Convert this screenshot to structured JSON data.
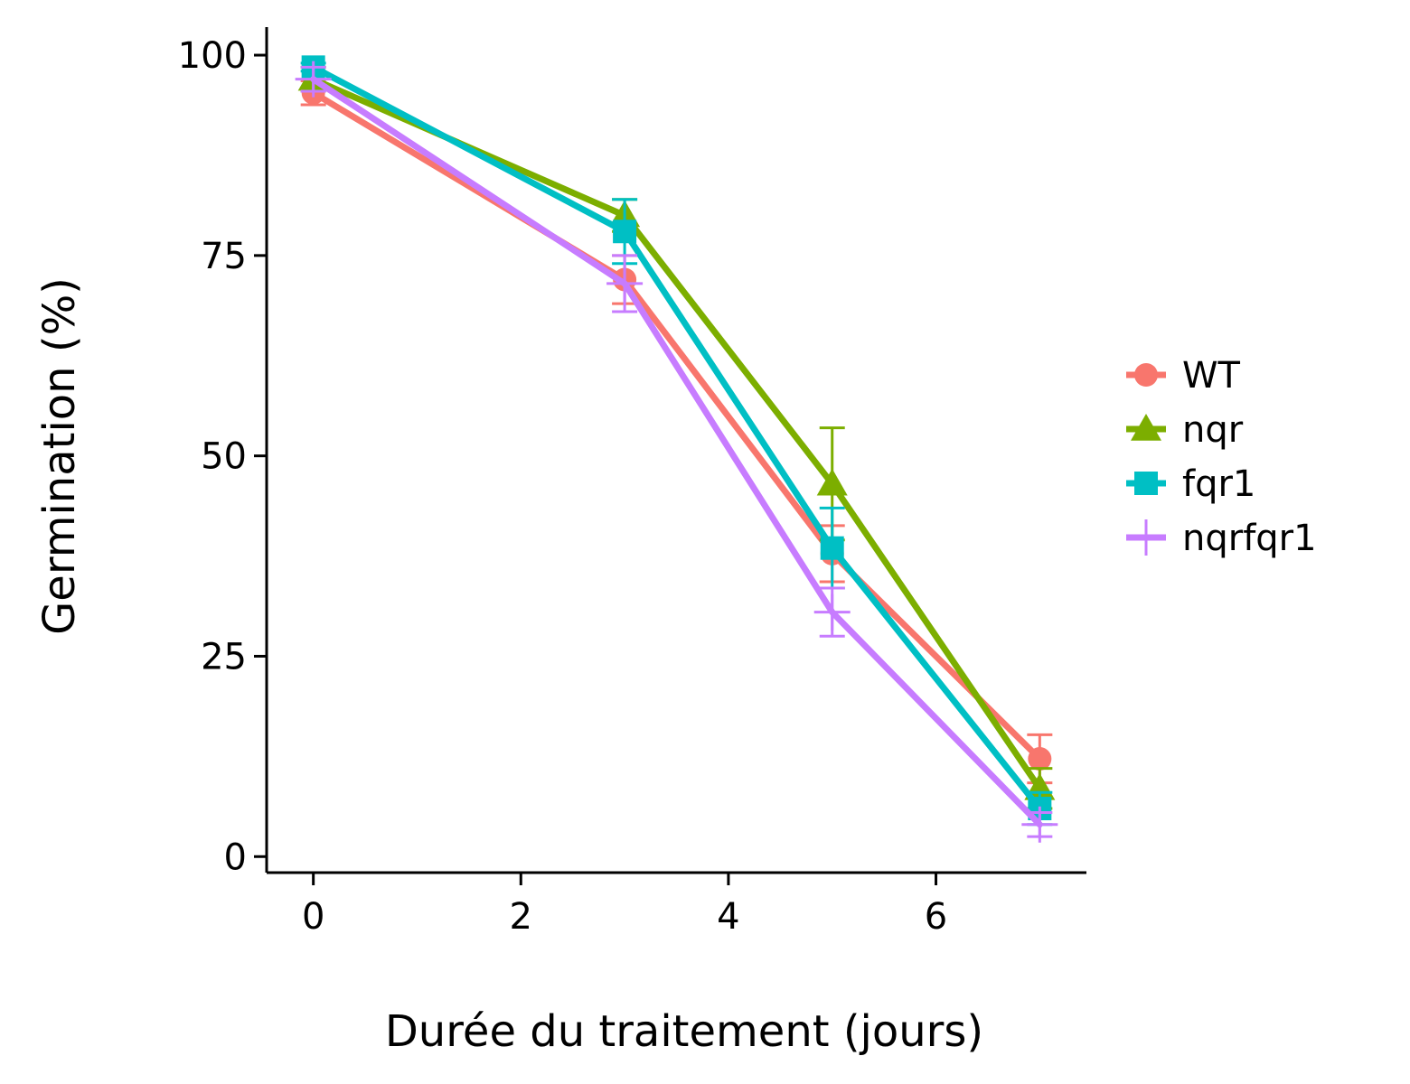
{
  "chart_data": {
    "type": "line",
    "xlabel": "Durée du traitement (jours)",
    "ylabel": "Germination (%)",
    "xlim": [
      -0.45,
      7.45
    ],
    "ylim": [
      -2,
      103.5
    ],
    "x_ticks": [
      0,
      2,
      4,
      6
    ],
    "y_ticks": [
      0,
      25,
      50,
      75,
      100
    ],
    "x_tick_labels": [
      "0",
      "2",
      "4",
      "6"
    ],
    "y_tick_labels": [
      "0",
      "25",
      "50",
      "75",
      "100"
    ],
    "grid": false,
    "legend_position": "right",
    "x": [
      0,
      3,
      5,
      7
    ],
    "series": [
      {
        "name": "WT",
        "color": "#F8766D",
        "marker": "circle",
        "values": [
          95.3,
          72.0,
          37.8,
          12.2
        ],
        "error": [
          1.5,
          3.0,
          3.5,
          3.0
        ]
      },
      {
        "name": "nqr",
        "color": "#7CAE00",
        "marker": "triangle",
        "values": [
          97.0,
          80.0,
          46.5,
          8.5
        ],
        "error": [
          1.5,
          2.0,
          7.0,
          2.5
        ]
      },
      {
        "name": "fqr1",
        "color": "#00BFC4",
        "marker": "square",
        "values": [
          98.5,
          78.0,
          38.5,
          6.0
        ],
        "error": [
          0.5,
          4.0,
          5.0,
          2.0
        ]
      },
      {
        "name": "nqrfqr1",
        "color": "#C77CFF",
        "marker": "cross",
        "values": [
          97.0,
          71.5,
          30.5,
          4.0
        ],
        "error": [
          1.5,
          3.5,
          3.0,
          1.5
        ]
      }
    ]
  }
}
